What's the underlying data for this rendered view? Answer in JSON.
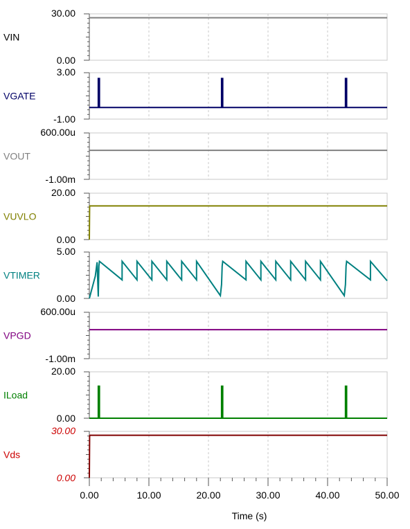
{
  "xaxis": {
    "label": "Time (s)",
    "range": [
      0,
      50
    ],
    "ticks": [
      "0.00",
      "10.00",
      "20.00",
      "30.00",
      "40.00",
      "50.00"
    ]
  },
  "chart_data": [
    {
      "type": "line",
      "name": "VIN",
      "color": "#808080",
      "label_color": "#000000",
      "tick_color": "#000000",
      "ylim": [
        0,
        30
      ],
      "yticks": [
        "30.00",
        "0.00"
      ],
      "x": [
        0,
        50
      ],
      "y": [
        27.5,
        27.5
      ]
    },
    {
      "type": "line",
      "name": "VGATE",
      "color": "#000066",
      "label_color": "#000066",
      "tick_color": "#000000",
      "ylim": [
        -1,
        3
      ],
      "yticks": [
        "3.00",
        "-1.00"
      ],
      "x": [
        0,
        1.5,
        1.5,
        1.7,
        1.7,
        22.2,
        22.2,
        22.4,
        22.4,
        43.0,
        43.0,
        43.2,
        43.2,
        50
      ],
      "y": [
        0,
        0,
        2.5,
        2.5,
        0,
        0,
        2.5,
        2.5,
        0,
        0,
        2.5,
        2.5,
        0,
        0
      ]
    },
    {
      "type": "line",
      "name": "VOUT",
      "color": "#808080",
      "label_color": "#808080",
      "tick_color": "#000000",
      "ylim": [
        -0.001,
        0.0006
      ],
      "yticks": [
        "600.00u",
        "-1.00m"
      ],
      "x": [
        0,
        50
      ],
      "y": [
        0,
        0
      ]
    },
    {
      "type": "line",
      "name": "VUVLO",
      "color": "#808000",
      "label_color": "#808000",
      "tick_color": "#000000",
      "ylim": [
        0,
        20
      ],
      "yticks": [
        "20.00",
        "0.00"
      ],
      "x": [
        0,
        0.05,
        0.1,
        50
      ],
      "y": [
        0,
        14.3,
        14.5,
        14.5
      ]
    },
    {
      "type": "line",
      "name": "VTIMER",
      "color": "#008080",
      "label_color": "#008080",
      "tick_color": "#000000",
      "ylim": [
        0,
        5
      ],
      "yticks": [
        "5.00",
        "0.00"
      ],
      "x": [
        0,
        1.0,
        1.3,
        1.5,
        1.6,
        1.7,
        5.5,
        5.5,
        8.0,
        8.0,
        10.5,
        10.5,
        13.0,
        13.0,
        15.5,
        15.5,
        18.0,
        18.0,
        22.0,
        22.2,
        22.3,
        22.4,
        26.3,
        26.3,
        28.8,
        28.8,
        31.3,
        31.3,
        33.8,
        33.8,
        36.3,
        36.3,
        38.8,
        38.8,
        42.8,
        43.0,
        43.1,
        43.2,
        47.2,
        47.2,
        50.0
      ],
      "y": [
        0,
        2.4,
        3.9,
        0.2,
        3.5,
        4.0,
        2.0,
        4.0,
        2.0,
        4.0,
        2.0,
        4.0,
        2.0,
        4.0,
        2.0,
        4.0,
        2.0,
        4.0,
        0.3,
        1.5,
        3.5,
        4.0,
        2.0,
        4.0,
        2.0,
        4.0,
        2.0,
        4.0,
        2.0,
        4.0,
        2.0,
        4.0,
        2.0,
        4.0,
        0.3,
        1.5,
        3.5,
        4.0,
        2.0,
        4.0,
        1.9
      ]
    },
    {
      "type": "line",
      "name": "VPGD",
      "color": "#800080",
      "label_color": "#800080",
      "tick_color": "#000000",
      "ylim": [
        -0.001,
        0.0006
      ],
      "yticks": [
        "600.00u",
        "-1.00m"
      ],
      "x": [
        0,
        50
      ],
      "y": [
        0,
        0
      ]
    },
    {
      "type": "line",
      "name": "ILoad",
      "color": "#008000",
      "label_color": "#008000",
      "tick_color": "#000000",
      "ylim": [
        0,
        20
      ],
      "yticks": [
        "20.00",
        "0.00"
      ],
      "x": [
        0,
        1.5,
        1.5,
        1.7,
        1.7,
        22.2,
        22.2,
        22.4,
        22.4,
        43.0,
        43.0,
        43.2,
        43.2,
        50
      ],
      "y": [
        0,
        0,
        13.8,
        13.8,
        0,
        0,
        13.8,
        13.8,
        0,
        0,
        13.8,
        13.8,
        0,
        0
      ]
    },
    {
      "type": "line",
      "name": "Vds",
      "color": "#800000",
      "label_color": "#cc0000",
      "tick_color": "#cc0000",
      "ylim": [
        0,
        30
      ],
      "yticks": [
        "30.00",
        "0.00"
      ],
      "x": [
        0,
        0.05,
        0.1,
        50
      ],
      "y": [
        0,
        27.0,
        27.5,
        27.5
      ]
    }
  ]
}
